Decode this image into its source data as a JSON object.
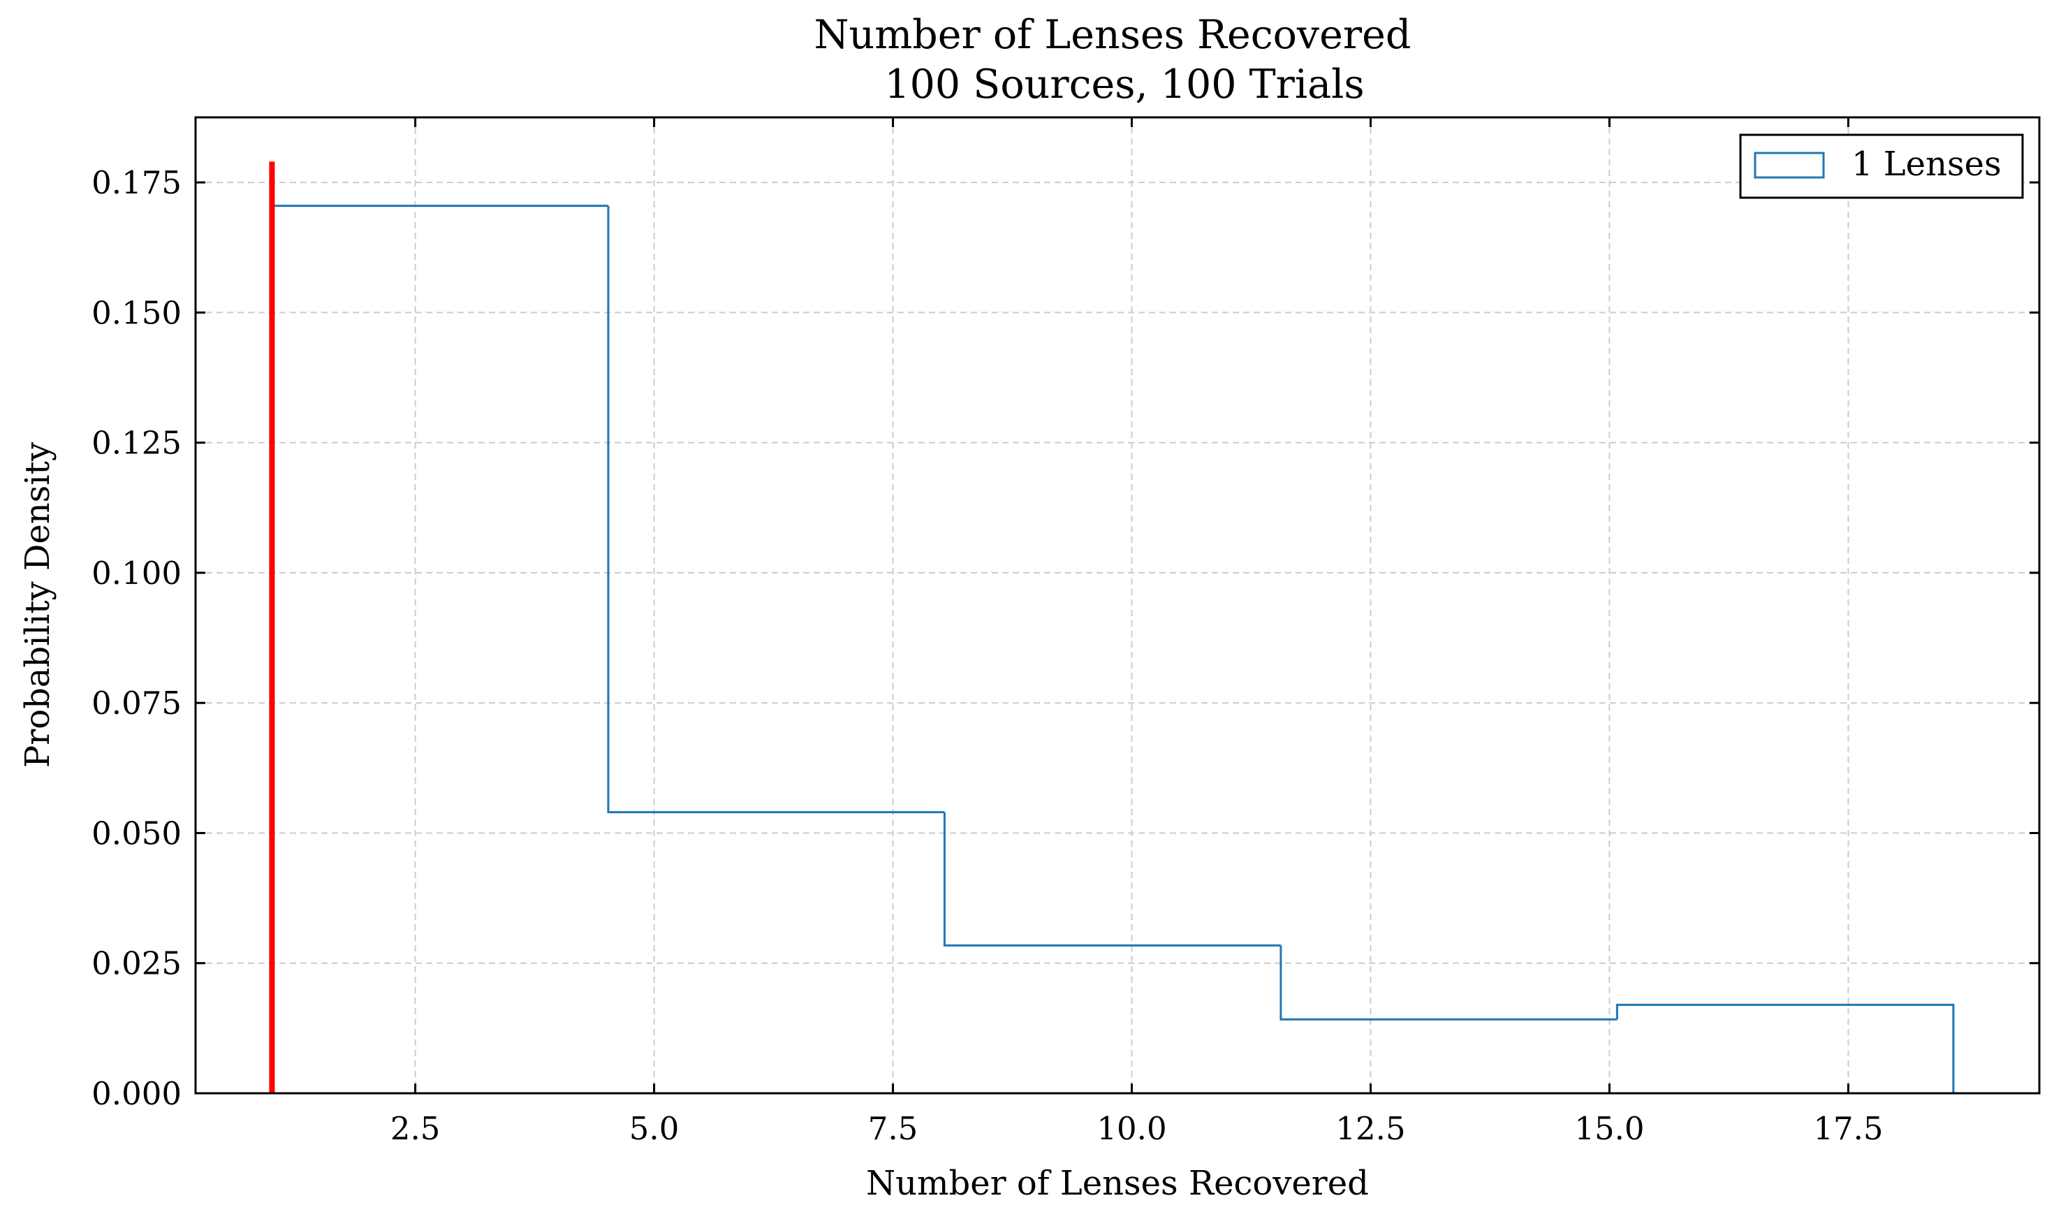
{
  "chart_data": {
    "type": "histogram",
    "title_line1": "Number of Lenses Recovered",
    "title_line2": "100 Sources, 100 Trials",
    "xlabel": "Number of Lenses Recovered",
    "ylabel": "Probability Density",
    "xlim": [
      0.2,
      19.5
    ],
    "ylim": [
      0,
      0.1875
    ],
    "xticks": [
      2.5,
      5.0,
      7.5,
      10.0,
      12.5,
      15.0,
      17.5
    ],
    "xtick_labels": [
      "2.5",
      "5.0",
      "7.5",
      "10.0",
      "12.5",
      "15.0",
      "17.5"
    ],
    "yticks": [
      0.0,
      0.025,
      0.05,
      0.075,
      0.1,
      0.125,
      0.15,
      0.175
    ],
    "ytick_labels": [
      "0.000",
      "0.025",
      "0.050",
      "0.075",
      "0.100",
      "0.125",
      "0.150",
      "0.175"
    ],
    "grid": true,
    "legend_position": "top-right",
    "series": [
      {
        "name": "1 Lenses",
        "color": "#1f77b4",
        "histtype": "step",
        "bin_edges": [
          1.0,
          4.52,
          8.04,
          11.56,
          15.08,
          18.6
        ],
        "densities": [
          0.1705,
          0.054,
          0.0284,
          0.0142,
          0.017
        ]
      }
    ],
    "reference_line": {
      "x": 1.0,
      "y_top": 0.179,
      "color": "#ff0000"
    }
  }
}
